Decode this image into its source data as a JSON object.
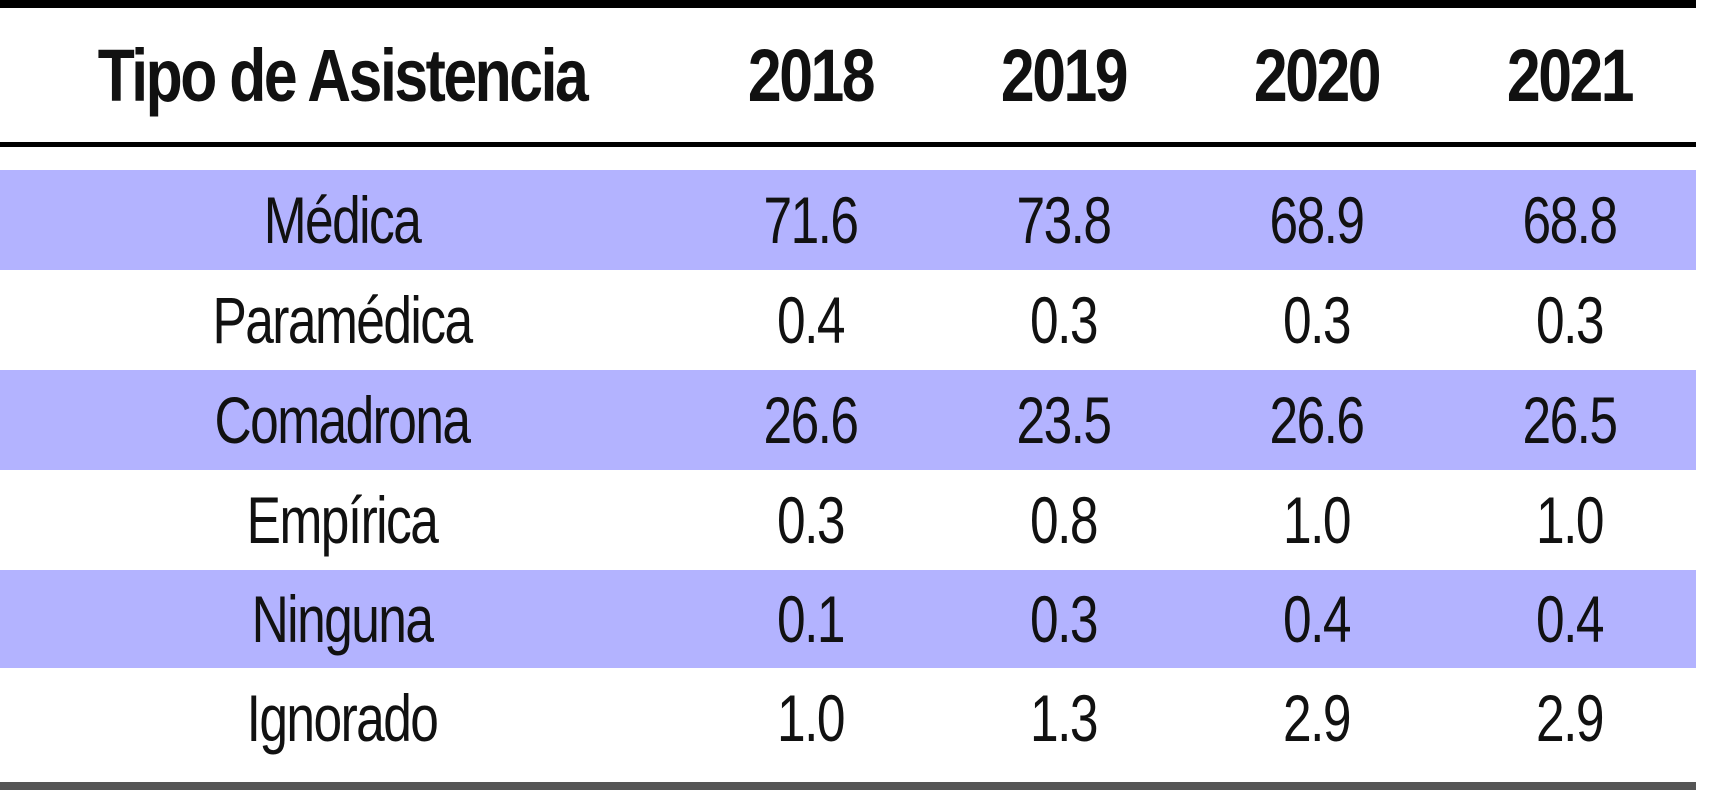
{
  "chart_data": {
    "type": "table",
    "columns": [
      "Tipo de Asistencia",
      "2018",
      "2019",
      "2020",
      "2021"
    ],
    "rows": [
      {
        "label": "Médica",
        "values": [
          "71.6",
          "73.8",
          "68.9",
          "68.8"
        ]
      },
      {
        "label": "Paramédica",
        "values": [
          "0.4",
          "0.3",
          "0.3",
          "0.3"
        ]
      },
      {
        "label": "Comadrona",
        "values": [
          "26.6",
          "23.5",
          "26.6",
          "26.5"
        ]
      },
      {
        "label": "Empírica",
        "values": [
          "0.3",
          "0.8",
          "1.0",
          "1.0"
        ]
      },
      {
        "label": "Ninguna",
        "values": [
          "0.1",
          "0.3",
          "0.4",
          "0.4"
        ]
      },
      {
        "label": "Ignorado",
        "values": [
          "1.0",
          "1.3",
          "2.9",
          "2.9"
        ]
      }
    ]
  },
  "colors": {
    "band": "#b3b3ff",
    "rule": "#000000",
    "bottom_rule": "#555555"
  }
}
